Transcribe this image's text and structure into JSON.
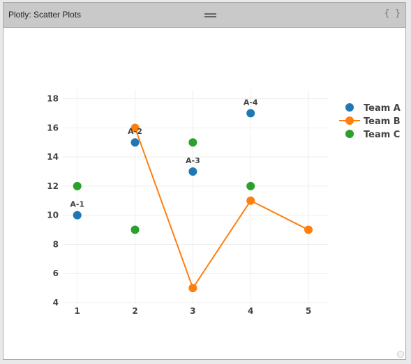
{
  "window": {
    "title": "Plotly: Scatter Plots",
    "code_button": "{ }"
  },
  "chart_data": {
    "type": "scatter",
    "title": "",
    "xlabel": "",
    "ylabel": "",
    "xlim": [
      0.75,
      5.35
    ],
    "ylim": [
      4,
      18.6
    ],
    "xticks": [
      1,
      2,
      3,
      4,
      5
    ],
    "yticks": [
      4,
      6,
      8,
      10,
      12,
      14,
      16,
      18
    ],
    "grid": true,
    "legend": "top-right",
    "series": [
      {
        "name": "Team A",
        "mode": "markers",
        "color": "#1f77b4",
        "x": [
          1,
          2,
          3,
          4
        ],
        "y": [
          10,
          15,
          13,
          17
        ],
        "text": [
          "A-1",
          "A-2",
          "A-3",
          "A-4"
        ]
      },
      {
        "name": "Team B",
        "mode": "lines+markers",
        "color": "#ff7f0e",
        "x": [
          2,
          3,
          4,
          5
        ],
        "y": [
          16,
          5,
          11,
          9
        ]
      },
      {
        "name": "Team C",
        "mode": "markers",
        "color": "#2ca02c",
        "x": [
          1,
          2,
          3,
          4
        ],
        "y": [
          12,
          9,
          15,
          12
        ]
      }
    ]
  }
}
